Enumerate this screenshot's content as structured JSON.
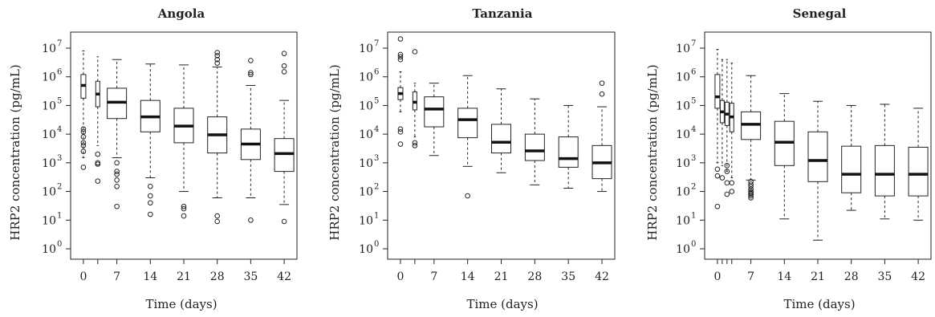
{
  "figure": {
    "panels": [
      {
        "title": "Angola",
        "xlabel": "Time (days)",
        "ylabel": "HRP2 concentration (pg/mL)"
      },
      {
        "title": "Tanzania",
        "xlabel": "Time (days)",
        "ylabel": "HRP2 concentration (pg/mL)"
      },
      {
        "title": "Senegal",
        "xlabel": "Time (days)",
        "ylabel": "HRP2 concentration (pg/mL)"
      }
    ]
  },
  "chart_data": [
    {
      "type": "box",
      "title": "Angola",
      "xlabel": "Time (days)",
      "ylabel": "HRP2 concentration (pg/mL)",
      "yscale": "log10",
      "ylim": [
        1,
        10000000
      ],
      "y_ticks": [
        "10^0",
        "10^1",
        "10^2",
        "10^3",
        "10^4",
        "10^5",
        "10^6",
        "10^7"
      ],
      "x_ticks": [
        0,
        7,
        14,
        21,
        28,
        35,
        42
      ],
      "xlim": [
        -2,
        44
      ],
      "boxes": [
        {
          "day": 0,
          "min": 1500,
          "q1": 180000,
          "median": 500000,
          "q3": 1200000,
          "max": 8000000,
          "outliers": [
            15000,
            12000,
            8000,
            5000,
            4000,
            2500,
            700
          ]
        },
        {
          "day": 3,
          "min": 4000,
          "q1": 90000,
          "median": 250000,
          "q3": 700000,
          "max": 5000000,
          "outliers": [
            2000,
            1000,
            900,
            230
          ]
        },
        {
          "day": 7,
          "min": 1500,
          "q1": 35000,
          "median": 130000,
          "q3": 400000,
          "max": 4000000,
          "outliers": [
            1000,
            500,
            400,
            250,
            150,
            30
          ]
        },
        {
          "day": 14,
          "min": 300,
          "q1": 12000,
          "median": 40000,
          "q3": 150000,
          "max": 2800000,
          "outliers": [
            150,
            70,
            40,
            16
          ]
        },
        {
          "day": 21,
          "min": 100,
          "q1": 5000,
          "median": 19000,
          "q3": 80000,
          "max": 2600000,
          "outliers": [
            30,
            25,
            14
          ]
        },
        {
          "day": 28,
          "min": 60,
          "q1": 2200,
          "median": 9500,
          "q3": 40000,
          "max": 2200000,
          "outliers": [
            7000000,
            5500000,
            4000000,
            3000000,
            14,
            9
          ]
        },
        {
          "day": 35,
          "min": 60,
          "q1": 1300,
          "median": 4500,
          "q3": 15000,
          "max": 500000,
          "outliers": [
            3700000,
            1400000,
            1200000,
            10
          ]
        },
        {
          "day": 42,
          "min": 35,
          "q1": 500,
          "median": 2100,
          "q3": 7000,
          "max": 150000,
          "outliers": [
            6500000,
            2400000,
            1500000,
            9
          ]
        }
      ]
    },
    {
      "type": "box",
      "title": "Tanzania",
      "xlabel": "Time (days)",
      "ylabel": "HRP2 concentration (pg/mL)",
      "yscale": "log10",
      "ylim": [
        1,
        10000000
      ],
      "y_ticks": [
        "10^0",
        "10^1",
        "10^2",
        "10^3",
        "10^4",
        "10^5",
        "10^6",
        "10^7"
      ],
      "x_ticks": [
        0,
        7,
        14,
        21,
        28,
        35,
        42
      ],
      "xlim": [
        -2,
        44
      ],
      "boxes": [
        {
          "day": 0,
          "min": 60000,
          "q1": 160000,
          "median": 260000,
          "q3": 420000,
          "max": 1500000,
          "outliers": [
            21000000,
            6000000,
            5000000,
            4000000,
            15000,
            12000,
            4500
          ]
        },
        {
          "day": 3,
          "min": 8000,
          "q1": 70000,
          "median": 130000,
          "q3": 300000,
          "max": 600000,
          "outliers": [
            7500000,
            5000,
            4000
          ]
        },
        {
          "day": 7,
          "min": 1800,
          "q1": 18000,
          "median": 75000,
          "q3": 200000,
          "max": 600000,
          "outliers": []
        },
        {
          "day": 14,
          "min": 750,
          "q1": 7500,
          "median": 32000,
          "q3": 80000,
          "max": 1100000,
          "outliers": [
            70
          ]
        },
        {
          "day": 21,
          "min": 450,
          "q1": 2200,
          "median": 5200,
          "q3": 22000,
          "max": 380000,
          "outliers": []
        },
        {
          "day": 28,
          "min": 170,
          "q1": 1200,
          "median": 2600,
          "q3": 10000,
          "max": 170000,
          "outliers": []
        },
        {
          "day": 35,
          "min": 130,
          "q1": 700,
          "median": 1400,
          "q3": 8000,
          "max": 100000,
          "outliers": []
        },
        {
          "day": 42,
          "min": 100,
          "q1": 280,
          "median": 1000,
          "q3": 4000,
          "max": 90000,
          "outliers": [
            600000,
            250000
          ]
        }
      ]
    },
    {
      "type": "box",
      "title": "Senegal",
      "xlabel": "Time (days)",
      "ylabel": "HRP2 concentration (pg/mL)",
      "yscale": "log10",
      "ylim": [
        1,
        10000000
      ],
      "y_ticks": [
        "10^0",
        "10^1",
        "10^2",
        "10^3",
        "10^4",
        "10^5",
        "10^6",
        "10^7"
      ],
      "x_ticks": [
        0,
        7,
        14,
        21,
        28,
        35,
        42
      ],
      "xlim": [
        -2,
        44
      ],
      "boxes": [
        {
          "day": 0,
          "min": 1000,
          "q1": 80000,
          "median": 200000,
          "q3": 1200000,
          "max": 9000000,
          "outliers": [
            600,
            350,
            30
          ]
        },
        {
          "day": 1,
          "min": 800,
          "q1": 25000,
          "median": 60000,
          "q3": 150000,
          "max": 4000000,
          "outliers": [
            300
          ]
        },
        {
          "day": 2,
          "min": 500,
          "q1": 20000,
          "median": 50000,
          "q3": 130000,
          "max": 4000000,
          "outliers": [
            800,
            500,
            200,
            80
          ]
        },
        {
          "day": 3,
          "min": 300,
          "q1": 12000,
          "median": 40000,
          "q3": 120000,
          "max": 3000000,
          "outliers": [
            200,
            100
          ]
        },
        {
          "day": 7,
          "min": 250,
          "q1": 6500,
          "median": 22000,
          "q3": 60000,
          "max": 1100000,
          "outliers": [
            220,
            180,
            150,
            120,
            100,
            90,
            80,
            70,
            60
          ]
        },
        {
          "day": 14,
          "min": 11,
          "q1": 800,
          "median": 5200,
          "q3": 28000,
          "max": 260000,
          "outliers": []
        },
        {
          "day": 21,
          "min": 2,
          "q1": 220,
          "median": 1200,
          "q3": 12000,
          "max": 140000,
          "outliers": []
        },
        {
          "day": 28,
          "min": 22,
          "q1": 90,
          "median": 400,
          "q3": 3800,
          "max": 100000,
          "outliers": []
        },
        {
          "day": 35,
          "min": 11,
          "q1": 70,
          "median": 400,
          "q3": 4000,
          "max": 110000,
          "outliers": []
        },
        {
          "day": 42,
          "min": 10,
          "q1": 70,
          "median": 400,
          "q3": 3500,
          "max": 80000,
          "outliers": []
        }
      ]
    }
  ]
}
